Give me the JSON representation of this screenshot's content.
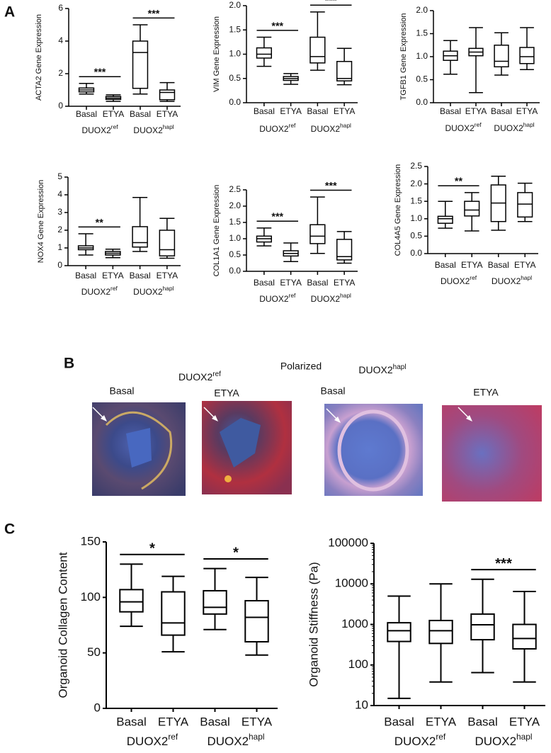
{
  "panel_labels": [
    "A",
    "B",
    "C"
  ],
  "image_panel": {
    "title": "Polarized",
    "groups": [
      {
        "label": "DUOX2",
        "sup": "ref",
        "images": [
          "Basal",
          "ETYA"
        ]
      },
      {
        "label": "DUOX2",
        "sup": "hapl",
        "images": [
          "Basal",
          "ETYA"
        ]
      }
    ]
  },
  "chart_data": [
    {
      "type": "box",
      "ylabel": "ACTA2 Gene Expression",
      "color": "#000000",
      "categories": [
        "Basal",
        "ETYA",
        "Basal",
        "ETYA"
      ],
      "groups": [
        {
          "label": "DUOX2",
          "sup": "ref"
        },
        {
          "label": "DUOX2",
          "sup": "hapl"
        }
      ],
      "ylim": [
        0,
        6
      ],
      "yticks": [
        0,
        2,
        4,
        6
      ],
      "boxes": [
        {
          "min": 0.75,
          "q1": 0.88,
          "median": 1.0,
          "q3": 1.12,
          "max": 1.4
        },
        {
          "min": 0.3,
          "q1": 0.42,
          "median": 0.5,
          "q3": 0.6,
          "max": 0.7
        },
        {
          "min": 0.75,
          "q1": 1.1,
          "median": 3.3,
          "q3": 4.0,
          "max": 5.0
        },
        {
          "min": 0.3,
          "q1": 0.4,
          "median": 0.85,
          "q3": 1.0,
          "max": 1.45
        }
      ],
      "significance": [
        {
          "from": 0,
          "to": 1,
          "label": "***"
        },
        {
          "from": 2,
          "to": 3,
          "label": "***"
        }
      ]
    },
    {
      "type": "box",
      "ylabel": "VIM Gene Expression",
      "color": "#000000",
      "categories": [
        "Basal",
        "ETYA",
        "Basal",
        "ETYA"
      ],
      "groups": [
        {
          "label": "DUOX2",
          "sup": "ref"
        },
        {
          "label": "DUOX2",
          "sup": "hapl"
        }
      ],
      "ylim": [
        0,
        2
      ],
      "yticks": [
        {
          "value": 0,
          "label": "0.0"
        },
        0.5,
        {
          "value": 1,
          "label": "1.0"
        },
        1.5,
        {
          "value": 2,
          "label": "2.0"
        }
      ],
      "boxes": [
        {
          "min": 0.75,
          "q1": 0.92,
          "median": 1.0,
          "q3": 1.13,
          "max": 1.35
        },
        {
          "min": 0.38,
          "q1": 0.46,
          "median": 0.5,
          "q3": 0.54,
          "max": 0.6
        },
        {
          "min": 0.67,
          "q1": 0.82,
          "median": 0.95,
          "q3": 1.35,
          "max": 1.87
        },
        {
          "min": 0.37,
          "q1": 0.45,
          "median": 0.5,
          "q3": 0.85,
          "max": 1.12
        }
      ],
      "significance": [
        {
          "from": 0,
          "to": 1,
          "label": "***"
        },
        {
          "from": 2,
          "to": 3,
          "label": "***"
        }
      ]
    },
    {
      "type": "box",
      "ylabel": "TGFB1 Gene Expression",
      "color": "#000000",
      "categories": [
        "Basal",
        "ETYA",
        "Basal",
        "ETYA"
      ],
      "groups": [
        {
          "label": "DUOX2",
          "sup": "ref"
        },
        {
          "label": "DUOX2",
          "sup": "hapl"
        }
      ],
      "ylim": [
        0,
        2
      ],
      "yticks": [
        {
          "value": 0,
          "label": "0.0"
        },
        0.5,
        {
          "value": 1,
          "label": "1.0"
        },
        1.5,
        {
          "value": 2,
          "label": "2.0"
        }
      ],
      "boxes": [
        {
          "min": 0.62,
          "q1": 0.92,
          "median": 1.02,
          "q3": 1.12,
          "max": 1.35
        },
        {
          "min": 0.22,
          "q1": 1.02,
          "median": 1.1,
          "q3": 1.18,
          "max": 1.63
        },
        {
          "min": 0.6,
          "q1": 0.78,
          "median": 0.9,
          "q3": 1.25,
          "max": 1.52
        },
        {
          "min": 0.72,
          "q1": 0.85,
          "median": 1.0,
          "q3": 1.2,
          "max": 1.63
        }
      ],
      "significance": []
    },
    {
      "type": "box",
      "ylabel": "NOX4 Gene Expression",
      "color": "#000000",
      "categories": [
        "Basal",
        "ETYA",
        "Basal",
        "ETYA"
      ],
      "groups": [
        {
          "label": "DUOX2",
          "sup": "ref"
        },
        {
          "label": "DUOX2",
          "sup": "hapl"
        }
      ],
      "ylim": [
        0,
        5
      ],
      "yticks": [
        0,
        1,
        2,
        3,
        4,
        5
      ],
      "boxes": [
        {
          "min": 0.6,
          "q1": 0.9,
          "median": 1.0,
          "q3": 1.12,
          "max": 1.8
        },
        {
          "min": 0.45,
          "q1": 0.6,
          "median": 0.7,
          "q3": 0.8,
          "max": 0.93
        },
        {
          "min": 0.8,
          "q1": 1.05,
          "median": 1.3,
          "q3": 2.2,
          "max": 3.85
        },
        {
          "min": 0.42,
          "q1": 0.55,
          "median": 0.9,
          "q3": 2.0,
          "max": 2.67
        }
      ],
      "significance": [
        {
          "from": 0,
          "to": 1,
          "label": "**"
        }
      ]
    },
    {
      "type": "box",
      "ylabel": "COL1A1 Gene Expression",
      "color": "#000000",
      "categories": [
        "Basal",
        "ETYA",
        "Basal",
        "ETYA"
      ],
      "groups": [
        {
          "label": "DUOX2",
          "sup": "ref"
        },
        {
          "label": "DUOX2",
          "sup": "hapl"
        }
      ],
      "ylim": [
        0,
        2.5
      ],
      "yticks": [
        {
          "value": 0,
          "label": "0.0"
        },
        0.5,
        {
          "value": 1,
          "label": "1.0"
        },
        1.5,
        {
          "value": 2,
          "label": "2.0"
        },
        2.5
      ],
      "boxes": [
        {
          "min": 0.78,
          "q1": 0.9,
          "median": 1.0,
          "q3": 1.08,
          "max": 1.33
        },
        {
          "min": 0.3,
          "q1": 0.47,
          "median": 0.55,
          "q3": 0.63,
          "max": 0.87
        },
        {
          "min": 0.55,
          "q1": 0.85,
          "median": 1.08,
          "q3": 1.43,
          "max": 2.28
        },
        {
          "min": 0.25,
          "q1": 0.35,
          "median": 0.45,
          "q3": 0.98,
          "max": 1.22
        }
      ],
      "significance": [
        {
          "from": 0,
          "to": 1,
          "label": "***"
        },
        {
          "from": 2,
          "to": 3,
          "label": "***"
        }
      ]
    },
    {
      "type": "box",
      "ylabel": "COL4A5 Gene Expression",
      "color": "#000000",
      "categories": [
        "Basal",
        "ETYA",
        "Basal",
        "ETYA"
      ],
      "groups": [
        {
          "label": "DUOX2",
          "sup": "ref"
        },
        {
          "label": "DUOX2",
          "sup": "hapl"
        }
      ],
      "ylim": [
        0,
        2.5
      ],
      "yticks": [
        {
          "value": 0,
          "label": "0.0"
        },
        0.5,
        {
          "value": 1,
          "label": "1.0"
        },
        1.5,
        {
          "value": 2,
          "label": "2.0"
        },
        2.5
      ],
      "boxes": [
        {
          "min": 0.73,
          "q1": 0.87,
          "median": 1.0,
          "q3": 1.07,
          "max": 1.5
        },
        {
          "min": 0.65,
          "q1": 1.08,
          "median": 1.25,
          "q3": 1.5,
          "max": 1.75
        },
        {
          "min": 0.67,
          "q1": 0.92,
          "median": 1.45,
          "q3": 1.97,
          "max": 2.22
        },
        {
          "min": 0.92,
          "q1": 1.05,
          "median": 1.42,
          "q3": 1.75,
          "max": 2.02
        }
      ],
      "significance": [
        {
          "from": 0,
          "to": 1,
          "label": "**"
        }
      ]
    },
    {
      "type": "box",
      "ylabel": "Organoid Collagen Content",
      "color": "#000000",
      "categories": [
        "Basal",
        "ETYA",
        "Basal",
        "ETYA"
      ],
      "groups": [
        {
          "label": "DUOX2",
          "sup": "ref"
        },
        {
          "label": "DUOX2",
          "sup": "hapl"
        }
      ],
      "ylim": [
        0,
        150
      ],
      "yticks": [
        0,
        50,
        100,
        150
      ],
      "boxes": [
        {
          "min": 74,
          "q1": 87,
          "median": 96,
          "q3": 107,
          "max": 130
        },
        {
          "min": 51,
          "q1": 66,
          "median": 77,
          "q3": 105,
          "max": 119
        },
        {
          "min": 71,
          "q1": 85,
          "median": 91,
          "q3": 106,
          "max": 126
        },
        {
          "min": 48,
          "q1": 60,
          "median": 82,
          "q3": 97,
          "max": 118
        }
      ],
      "significance": [
        {
          "from": 0,
          "to": 1,
          "label": "*"
        },
        {
          "from": 2,
          "to": 3,
          "label": "*"
        }
      ]
    },
    {
      "type": "box",
      "ylabel": "Organoid Stiffness (Pa)",
      "color": "#000000",
      "log": true,
      "categories": [
        "Basal",
        "ETYA",
        "Basal",
        "ETYA"
      ],
      "groups": [
        {
          "label": "DUOX2",
          "sup": "ref"
        },
        {
          "label": "DUOX2",
          "sup": "hapl"
        }
      ],
      "ylim": [
        10,
        100000
      ],
      "yticks": [
        10,
        100,
        1000,
        10000,
        100000
      ],
      "boxes": [
        {
          "min": 15,
          "q1": 380,
          "median": 700,
          "q3": 1100,
          "max": 5000
        },
        {
          "min": 38,
          "q1": 340,
          "median": 700,
          "q3": 1250,
          "max": 10000
        },
        {
          "min": 65,
          "q1": 420,
          "median": 980,
          "q3": 1800,
          "max": 13000
        },
        {
          "min": 38,
          "q1": 250,
          "median": 450,
          "q3": 1000,
          "max": 6500
        }
      ],
      "significance": [
        {
          "from": 2,
          "to": 3,
          "label": "***"
        }
      ]
    }
  ]
}
